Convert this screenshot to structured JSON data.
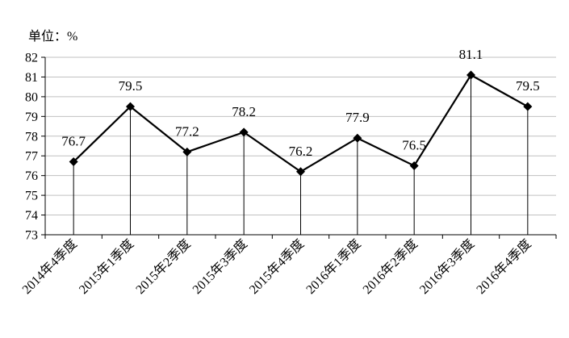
{
  "chart_data": {
    "type": "line",
    "unit_label": "单位：%",
    "categories": [
      "2014年4季度",
      "2015年1季度",
      "2015年2季度",
      "2015年3季度",
      "2015年4季度",
      "2016年1季度",
      "2016年2季度",
      "2016年3季度",
      "2016年4季度"
    ],
    "series": [
      {
        "values": [
          76.7,
          79.5,
          77.2,
          78.2,
          76.2,
          77.9,
          76.5,
          81.1,
          79.5
        ]
      }
    ],
    "data_labels": [
      "76.7",
      "79.5",
      "77.2",
      "78.2",
      "76.2",
      "77.9",
      "76.5",
      "81.1",
      "79.5"
    ],
    "ylim": [
      73,
      82
    ],
    "yticks": [
      73,
      74,
      75,
      76,
      77,
      78,
      79,
      80,
      81,
      82
    ],
    "grid": true,
    "drop_lines": true,
    "marker": "diamond",
    "line_color": "#000000",
    "grid_color": "#c0c0c0"
  }
}
